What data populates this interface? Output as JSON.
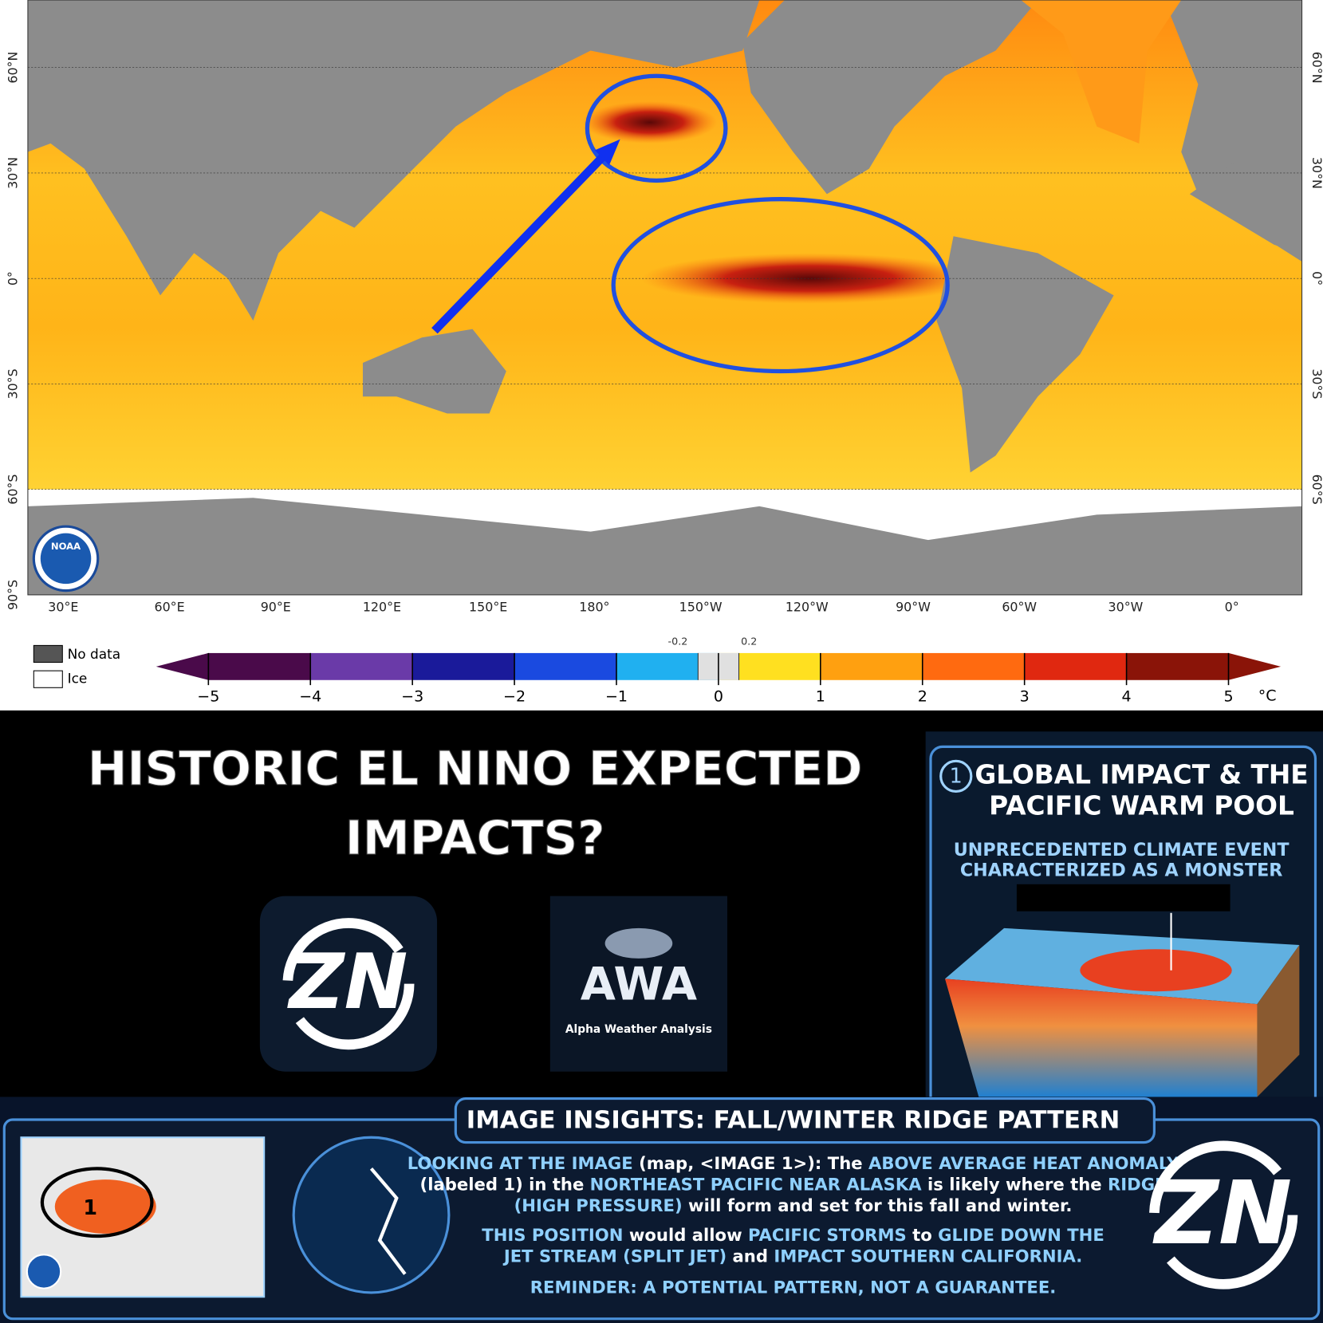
{
  "map": {
    "lat_labels": [
      "60°N",
      "30°N",
      "0°",
      "30°S",
      "60°S",
      "90°S"
    ],
    "lon_labels": [
      "30°E",
      "60°E",
      "90°E",
      "120°E",
      "150°E",
      "180°",
      "150°W",
      "120°W",
      "90°W",
      "60°W",
      "30°W",
      "0°"
    ],
    "agency": "NOAA",
    "legend": {
      "no_data": "No data",
      "ice": "Ice"
    },
    "colorbar": {
      "lim": [
        -5,
        5
      ],
      "ticks": [
        {
          "value": -5,
          "label": "−5"
        },
        {
          "value": -4,
          "label": "−4"
        },
        {
          "value": -3,
          "label": "−3"
        },
        {
          "value": -2,
          "label": "−2"
        },
        {
          "value": -1,
          "label": "−1"
        },
        0,
        1,
        2,
        3,
        4,
        5
      ],
      "minor_ticks": [
        {
          "value": -0.2,
          "label": "-0.2"
        },
        0.2
      ],
      "unit": "°C",
      "colors": [
        "#4a0a4a",
        "#6a3aa8",
        "#1a1a9a",
        "#1a4ae0",
        "#20b0f0",
        "#ffe020",
        "#ffa010",
        "#ff6a10",
        "#e02810",
        "#8a1408"
      ],
      "neutral_color": "#e0e0e0"
    }
  },
  "headline": [
    "HISTORIC EL NINO EXPECTED",
    "IMPACTS?"
  ],
  "logos": {
    "zn": "ZN",
    "awa": "AWA",
    "awa_name": "Alpha Weather Analysis"
  },
  "panel": {
    "number": "1",
    "title": [
      "GLOBAL IMPACT & THE",
      "PACIFIC WARM POOL"
    ],
    "subtitle": [
      "UNPRECEDENTED CLIMATE EVENT",
      "CHARACTERIZED AS A MONSTER"
    ]
  },
  "insights": {
    "title": "IMAGE INSIGHTS: FALL/WINTER RIDGE PATTERN",
    "inset_label": "1",
    "lines": [
      [
        {
          "text": "LOOKING AT THE IMAGE",
          "color": "#8fd0ff"
        },
        {
          "text": " (map, ",
          "color": "#ffffff"
        },
        {
          "text": "<IMAGE 1>",
          "color": "#ffffff"
        },
        {
          "text": "): The ",
          "color": "#ffffff"
        },
        {
          "text": "ABOVE AVERAGE HEAT ANOMALY",
          "color": "#8fd0ff"
        }
      ],
      [
        {
          "text": "(labeled 1) in the ",
          "color": "#ffffff"
        },
        {
          "text": "NORTHEAST PACIFIC NEAR ALASKA",
          "color": "#8fd0ff"
        },
        {
          "text": " is likely where the ",
          "color": "#ffffff"
        },
        {
          "text": "RIDGE",
          "color": "#8fd0ff"
        }
      ],
      [
        {
          "text": "(HIGH PRESSURE)",
          "color": "#8fd0ff"
        },
        {
          "text": " will form and set for this fall and winter.",
          "color": "#ffffff"
        }
      ],
      [
        {
          "text": "THIS POSITION",
          "color": "#8fd0ff"
        },
        {
          "text": " would allow ",
          "color": "#ffffff"
        },
        {
          "text": "PACIFIC STORMS",
          "color": "#8fd0ff"
        },
        {
          "text": " to ",
          "color": "#ffffff"
        },
        {
          "text": "GLIDE DOWN THE",
          "color": "#8fd0ff"
        }
      ],
      [
        {
          "text": "JET STREAM (SPLIT JET)",
          "color": "#8fd0ff"
        },
        {
          "text": " and ",
          "color": "#ffffff"
        },
        {
          "text": "IMPACT SOUTHERN CALIFORNIA.",
          "color": "#8fd0ff"
        }
      ],
      [
        {
          "text": "REMINDER: A POTENTIAL PATTERN, NOT A GUARANTEE.",
          "color": "#8fd0ff"
        }
      ]
    ]
  }
}
